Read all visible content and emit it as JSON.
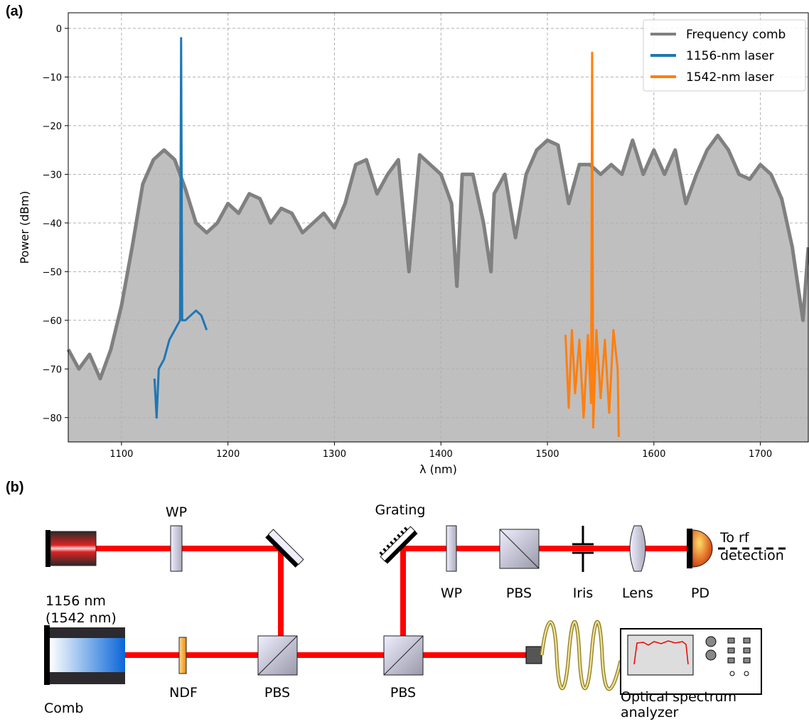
{
  "panel_labels": [
    "(a)",
    "(b)"
  ],
  "chart_data": {
    "type": "line",
    "xlabel": "λ (nm)",
    "ylabel": "Power (dBm)",
    "xlim": [
      1050,
      1745
    ],
    "ylim": [
      -85,
      3.2
    ],
    "xticks": [
      1100,
      1200,
      1300,
      1400,
      1500,
      1600,
      1700
    ],
    "yticks": [
      {
        "value": -80,
        "label": "−80"
      },
      {
        "value": -70,
        "label": "−70"
      },
      {
        "value": -60,
        "label": "−60"
      },
      {
        "value": -50,
        "label": "−50"
      },
      {
        "value": -40,
        "label": "−40"
      },
      {
        "value": -30,
        "label": "−30"
      },
      {
        "value": -20,
        "label": "−20"
      },
      {
        "value": -10,
        "label": "−10"
      },
      0
    ],
    "grid": true,
    "legend": "upper right",
    "series": [
      {
        "name": "Frequency comb",
        "color": "#808080",
        "fill": "#bfbfbf",
        "x": [
          1050,
          1060,
          1070,
          1080,
          1090,
          1100,
          1110,
          1120,
          1130,
          1140,
          1150,
          1160,
          1170,
          1180,
          1190,
          1200,
          1210,
          1220,
          1230,
          1240,
          1250,
          1260,
          1270,
          1280,
          1290,
          1300,
          1310,
          1320,
          1330,
          1340,
          1350,
          1360,
          1370,
          1380,
          1390,
          1400,
          1410,
          1415,
          1420,
          1430,
          1440,
          1447,
          1450,
          1460,
          1470,
          1480,
          1490,
          1500,
          1510,
          1520,
          1530,
          1540,
          1550,
          1560,
          1570,
          1580,
          1590,
          1600,
          1610,
          1620,
          1630,
          1640,
          1650,
          1660,
          1670,
          1680,
          1690,
          1700,
          1710,
          1720,
          1730,
          1740,
          1745
        ],
        "values": [
          -66,
          -70,
          -67,
          -72,
          -66,
          -57,
          -45,
          -32,
          -27,
          -25,
          -27,
          -33,
          -40,
          -42,
          -40,
          -36,
          -38,
          -34,
          -35,
          -40,
          -37,
          -38,
          -42,
          -40,
          -38,
          -41,
          -36,
          -28,
          -27,
          -34,
          -30,
          -27,
          -50,
          -26,
          -28,
          -30,
          -36,
          -53,
          -30,
          -30,
          -40,
          -50,
          -34,
          -30,
          -43,
          -30,
          -25,
          -23,
          -24,
          -36,
          -28,
          -28,
          -30,
          -28,
          -30,
          -23,
          -30,
          -25,
          -30,
          -25,
          -36,
          -30,
          -25,
          -22,
          -25,
          -30,
          -31,
          -28,
          -30,
          -35,
          -45,
          -60,
          -45
        ]
      },
      {
        "name": "1156-nm laser",
        "color": "#1f77b4",
        "x": [
          1131,
          1133,
          1135,
          1140,
          1145,
          1150,
          1155,
          1156,
          1157,
          1160,
          1165,
          1170,
          1175,
          1180
        ],
        "values": [
          -72,
          -80,
          -70,
          -68,
          -64,
          -62,
          -60,
          -2,
          -60,
          -60,
          -59,
          -58,
          -59,
          -62
        ]
      },
      {
        "name": "1542-nm laser",
        "color": "#ff7f0e",
        "x": [
          1517,
          1520,
          1523,
          1526,
          1530,
          1534,
          1538,
          1541,
          1542,
          1543,
          1546,
          1550,
          1554,
          1558,
          1562,
          1566,
          1567
        ],
        "values": [
          -63,
          -78,
          -62,
          -75,
          -64,
          -80,
          -63,
          -77,
          -5,
          -82,
          -62,
          -76,
          -64,
          -79,
          -62,
          -70,
          -84
        ]
      }
    ]
  },
  "diagram": {
    "labels": {
      "wp1": "WP",
      "grating": "Grating",
      "rf1": "To rf",
      "rf2": "detection",
      "laser1": "1156 nm",
      "laser2": "(1542 nm)",
      "wp2": "WP",
      "pbs1": "PBS",
      "iris": "Iris",
      "lens": "Lens",
      "pd": "PD",
      "comb": "Comb",
      "ndf": "NDF",
      "pbs2": "PBS",
      "pbs3": "PBS",
      "osa1": "Optical spectrum",
      "osa2": "analyzer"
    }
  }
}
